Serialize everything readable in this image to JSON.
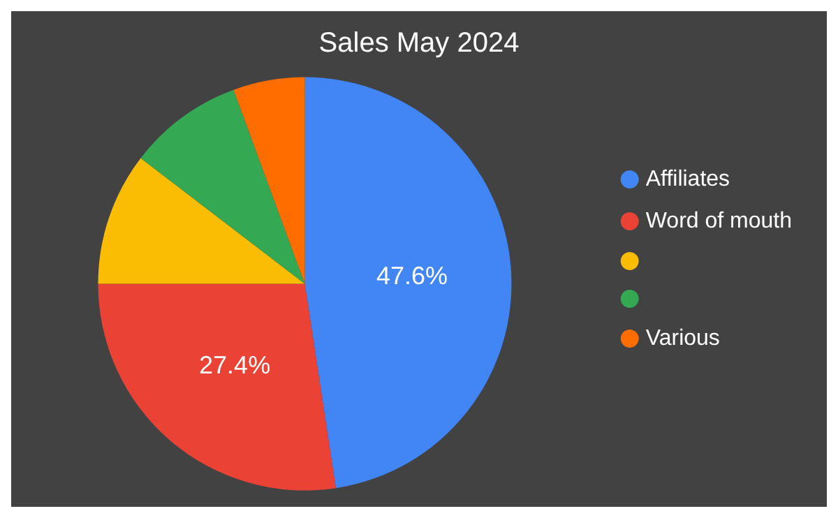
{
  "chart_data": {
    "type": "pie",
    "title": "Sales May 2024",
    "categories": [
      "Affiliates",
      "Word of mouth",
      null,
      null,
      "Various"
    ],
    "values": [
      47.6,
      27.4,
      10.4,
      9.0,
      5.6
    ],
    "colors": [
      "#4285f4",
      "#ea4335",
      "#fbbc04",
      "#34a853",
      "#ff6d01"
    ],
    "value_labels": [
      "47.6%",
      "27.4%",
      null,
      null,
      null
    ],
    "legend": "right"
  }
}
